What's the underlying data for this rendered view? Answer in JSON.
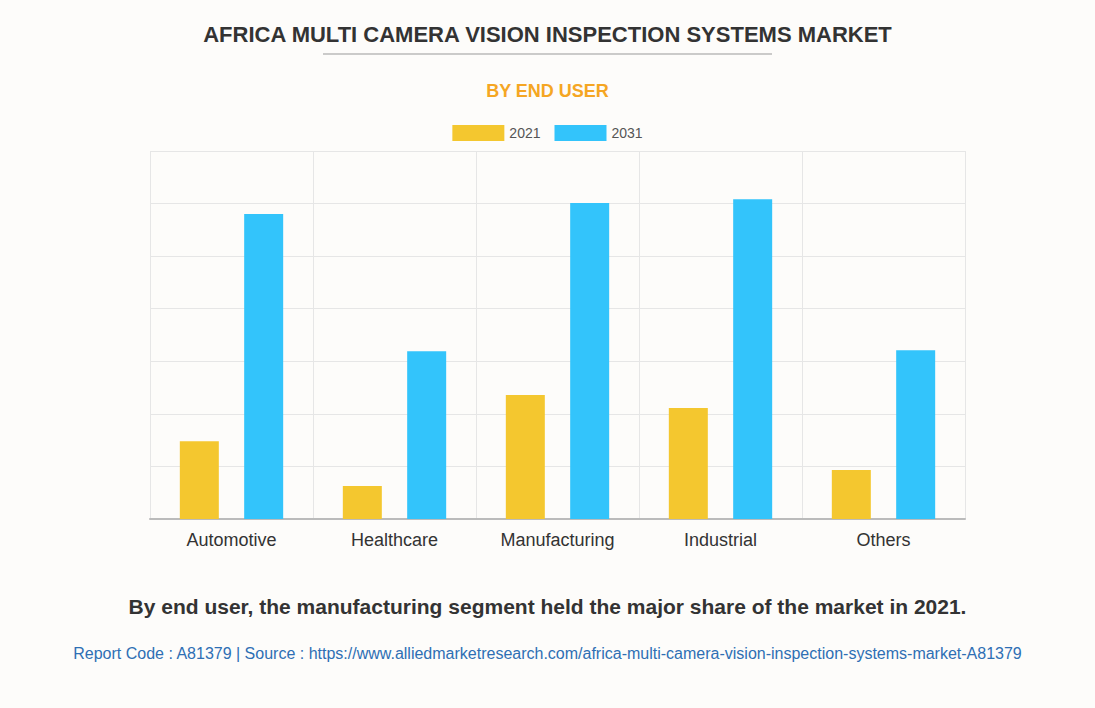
{
  "chart_data": {
    "type": "bar",
    "title": "AFRICA MULTI CAMERA VISION INSPECTION SYSTEMS MARKET",
    "subtitle": "BY END USER",
    "caption": "By end user, the manufacturing segment held the major share of the market in 2021.",
    "source": "Report Code : A81379  |  Source : https://www.alliedmarketresearch.com/africa-multi-camera-vision-inspection-systems-market-A81379",
    "categories": [
      "Automotive",
      "Healthcare",
      "Manufacturing",
      "Industrial",
      "Others"
    ],
    "series": [
      {
        "name": "2021",
        "color": "#f4c72f",
        "values": [
          1.48,
          0.63,
          2.36,
          2.11,
          0.93
        ]
      },
      {
        "name": "2031",
        "color": "#33c4fb",
        "values": [
          5.8,
          3.19,
          6.01,
          6.08,
          3.21
        ]
      }
    ],
    "ylim": [
      0,
      7
    ],
    "yticks": [
      0,
      1,
      2,
      3,
      4,
      5,
      6,
      7
    ],
    "grid": true,
    "legend": "top",
    "tick_labels": "x"
  }
}
